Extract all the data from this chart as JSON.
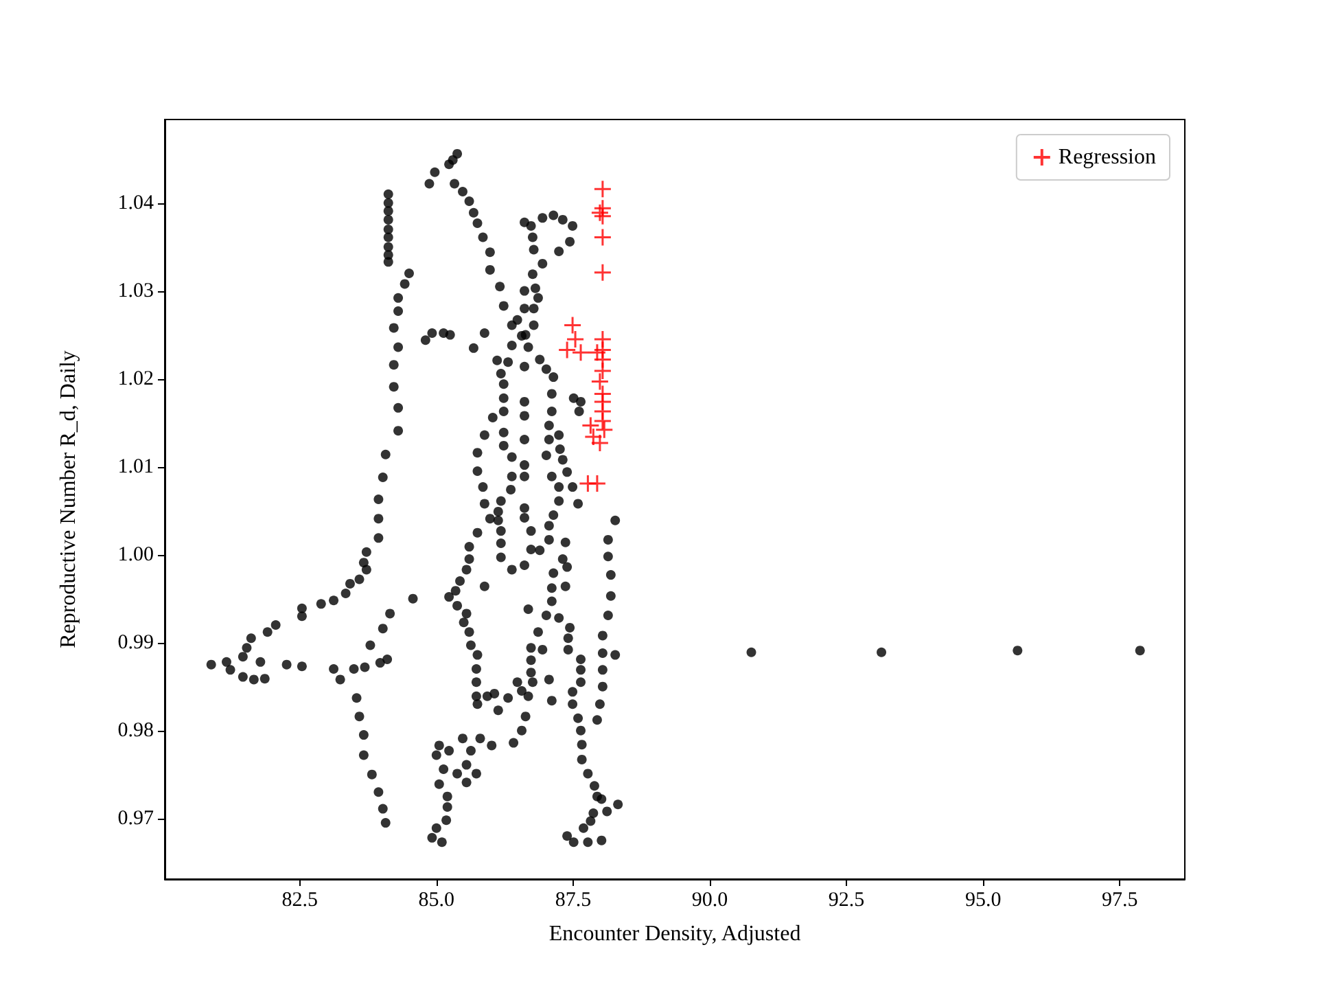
{
  "chart_data": {
    "type": "scatter",
    "xlabel": "Encounter Density, Adjusted",
    "ylabel": "Reproductive Number R_d, Daily",
    "xlim": [
      80.03,
      98.69
    ],
    "ylim": [
      0.9631,
      1.0495
    ],
    "xticks": [
      {
        "value": 82.5,
        "label": "82.5"
      },
      {
        "value": 85,
        "label": "85.0"
      },
      {
        "value": 87.5,
        "label": "87.5"
      },
      {
        "value": 90,
        "label": "90.0"
      },
      {
        "value": 92.5,
        "label": "92.5"
      },
      {
        "value": 95,
        "label": "95.0"
      },
      {
        "value": 97.5,
        "label": "97.5"
      }
    ],
    "yticks": [
      0.97,
      0.98,
      0.99,
      {
        "value": 1.0,
        "label": "1.00"
      },
      1.01,
      1.02,
      1.03,
      1.04
    ],
    "grid": false,
    "legend": "top right",
    "series": [
      {
        "color": "#000000",
        "marker": "circle",
        "x": [
          84.12,
          84.12,
          84.12,
          84.12,
          84.12,
          84.12,
          84.12,
          84.12,
          84.12,
          84.5,
          84.42,
          84.3,
          84.3,
          84.22,
          84.3,
          84.22,
          84.22,
          84.3,
          84.3,
          84.07,
          84.02,
          83.94,
          83.94,
          83.94,
          83.72,
          83.67,
          83.72,
          83.59,
          83.42,
          83.34,
          83.12,
          82.89,
          82.54,
          82.54,
          82.06,
          81.91,
          81.61,
          81.53,
          81.46,
          81.16,
          80.88,
          81.23,
          81.46,
          81.66,
          81.86,
          81.78,
          82.26,
          82.54,
          83.12,
          83.24,
          83.49,
          83.69,
          83.97,
          84.1,
          83.79,
          84.02,
          84.15,
          84.57,
          83.54,
          83.59,
          83.67,
          83.67,
          83.82,
          83.94,
          84.02,
          84.07,
          85.38,
          85.3,
          85.23,
          84.97,
          84.87,
          85.33,
          85.48,
          85.6,
          85.68,
          85.75,
          85.85,
          85.98,
          85.98,
          86.16,
          86.23,
          86.38,
          86.56,
          86.38,
          86.11,
          86.31,
          86.18,
          86.23,
          86.23,
          86.23,
          86.03,
          86.23,
          85.88,
          86.23,
          86.38,
          85.75,
          85.75,
          85.85,
          86.38,
          84.8,
          84.92,
          85.13,
          85.25,
          85.68,
          85.88,
          86.61,
          86.73,
          86.76,
          86.78,
          86.94,
          87.14,
          87.31,
          87.49,
          87.44,
          87.24,
          86.94,
          86.76,
          86.81,
          86.61,
          86.86,
          86.61,
          86.78,
          86.78,
          86.48,
          86.63,
          86.68,
          86.89,
          86.61,
          87.01,
          87.14,
          87.11,
          87.11,
          87.06,
          87.06,
          87.01,
          87.11,
          87.24,
          87.26,
          87.31,
          86.61,
          86.61,
          86.61,
          86.61,
          86.61,
          87.51,
          87.64,
          87.61,
          87.39,
          87.49,
          85.88,
          85.75,
          85.6,
          85.6,
          85.55,
          85.43,
          85.35,
          85.23,
          85.38,
          85.55,
          85.5,
          85.6,
          85.63,
          85.75,
          85.73,
          85.73,
          85.73,
          85.75,
          85.93,
          86.06,
          86.13,
          86.31,
          86.48,
          86.56,
          86.68,
          86.76,
          87.06,
          87.11,
          86.63,
          86.56,
          86.41,
          85.88,
          85.05,
          85.0,
          85.23,
          85.48,
          85.8,
          86.01,
          85.63,
          85.13,
          85.55,
          85.38,
          85.73,
          85.55,
          85.05,
          85.2,
          85.2,
          85.18,
          85.0,
          84.92,
          85.1,
          86.36,
          86.18,
          86.13,
          85.98,
          86.13,
          86.18,
          86.18,
          86.18,
          86.38,
          86.61,
          86.61,
          86.61,
          86.73,
          86.73,
          86.89,
          87.06,
          87.06,
          87.14,
          87.24,
          87.24,
          87.59,
          87.36,
          87.31,
          87.39,
          87.14,
          87.11,
          87.36,
          87.11,
          87.24,
          86.68,
          87.01,
          86.86,
          86.73,
          86.94,
          86.73,
          86.73,
          87.44,
          87.41,
          87.41,
          87.64,
          87.64,
          87.64,
          87.49,
          87.49,
          87.59,
          87.64,
          87.66,
          87.66,
          87.77,
          87.89,
          87.94,
          88.02,
          88.32,
          88.12,
          87.87,
          87.82,
          87.69,
          88.02,
          87.39,
          87.51,
          87.77,
          88.27,
          88.14,
          88.14,
          88.19,
          88.19,
          88.14,
          88.04,
          88.04,
          88.27,
          88.04,
          88.04,
          87.99,
          87.94,
          90.76,
          93.14,
          95.63,
          97.87
        ],
        "values": [
          1.041,
          1.04,
          1.0391,
          1.0381,
          1.037,
          1.0361,
          1.035,
          1.0341,
          1.0333,
          1.032,
          1.0308,
          1.0292,
          1.0277,
          1.0258,
          1.0236,
          1.0216,
          1.0191,
          1.0167,
          1.0141,
          1.0114,
          1.0088,
          1.0063,
          1.0041,
          1.0019,
          1.0003,
          0.9991,
          0.9983,
          0.9972,
          0.9967,
          0.9956,
          0.9948,
          0.9944,
          0.9939,
          0.993,
          0.992,
          0.9912,
          0.9905,
          0.9894,
          0.9884,
          0.9878,
          0.9875,
          0.9869,
          0.9861,
          0.9858,
          0.9859,
          0.9878,
          0.9875,
          0.9873,
          0.987,
          0.9858,
          0.987,
          0.9872,
          0.9877,
          0.9881,
          0.9897,
          0.9916,
          0.9933,
          0.995,
          0.9837,
          0.9816,
          0.9795,
          0.9772,
          0.975,
          0.973,
          0.9711,
          0.9695,
          1.0456,
          1.0449,
          1.0444,
          1.0435,
          1.0422,
          1.0422,
          1.0413,
          1.0402,
          1.0389,
          1.0377,
          1.0361,
          1.0344,
          1.0324,
          1.0305,
          1.0283,
          1.0261,
          1.0249,
          1.0238,
          1.0221,
          1.0219,
          1.0206,
          1.0194,
          1.0178,
          1.0163,
          1.0156,
          1.0139,
          1.0136,
          1.0124,
          1.0111,
          1.0116,
          1.0095,
          1.0077,
          1.0089,
          1.0244,
          1.0252,
          1.0252,
          1.025,
          1.0235,
          1.0252,
          1.0378,
          1.0374,
          1.0361,
          1.0347,
          1.0383,
          1.0386,
          1.0381,
          1.0374,
          1.0356,
          1.0345,
          1.0331,
          1.0319,
          1.0303,
          1.03,
          1.0292,
          1.028,
          1.028,
          1.0261,
          1.0267,
          1.025,
          1.0236,
          1.0222,
          1.0214,
          1.0211,
          1.0202,
          1.0183,
          1.0163,
          1.0147,
          1.0131,
          1.0113,
          1.0089,
          1.0136,
          1.012,
          1.0108,
          1.0174,
          1.0158,
          1.0131,
          1.0102,
          1.0089,
          1.0178,
          1.0174,
          1.0163,
          1.0094,
          1.0077,
          1.0058,
          1.0025,
          1.0009,
          0.9995,
          0.9983,
          0.997,
          0.9959,
          0.9952,
          0.9942,
          0.9933,
          0.9923,
          0.9912,
          0.9897,
          0.9886,
          0.987,
          0.9855,
          0.9839,
          0.983,
          0.9839,
          0.9842,
          0.9823,
          0.9837,
          0.9855,
          0.9845,
          0.9839,
          0.9855,
          0.9858,
          0.9834,
          0.9816,
          0.98,
          0.9786,
          0.9964,
          0.9783,
          0.9772,
          0.9777,
          0.9791,
          0.9791,
          0.9783,
          0.9777,
          0.9756,
          0.9761,
          0.9751,
          0.9751,
          0.9741,
          0.9739,
          0.9725,
          0.9713,
          0.9698,
          0.9689,
          0.9678,
          0.9673,
          1.0074,
          1.0061,
          1.0049,
          1.0041,
          1.0039,
          1.0027,
          1.0013,
          0.9997,
          0.9983,
          0.9988,
          1.0053,
          1.0042,
          1.0027,
          1.0006,
          1.0005,
          1.0017,
          1.0033,
          1.0045,
          1.0061,
          1.0077,
          1.0058,
          1.0014,
          0.9995,
          0.9986,
          0.9979,
          0.9962,
          0.9964,
          0.9947,
          0.9928,
          0.9938,
          0.9931,
          0.9912,
          0.9894,
          0.9892,
          0.988,
          0.9866,
          0.9917,
          0.9905,
          0.9892,
          0.9881,
          0.9869,
          0.9855,
          0.9844,
          0.983,
          0.9814,
          0.98,
          0.9784,
          0.9767,
          0.9751,
          0.9737,
          0.9725,
          0.9722,
          0.9716,
          0.9708,
          0.9706,
          0.9697,
          0.9689,
          0.9675,
          0.968,
          0.9673,
          0.9673,
          1.0039,
          1.0017,
          0.9998,
          0.9977,
          0.9953,
          0.9931,
          0.9908,
          0.9888,
          0.9886,
          0.9869,
          0.985,
          0.983,
          0.9812,
          0.9889,
          0.9889,
          0.9891,
          0.9891
        ]
      },
      {
        "name": "Regression",
        "color": "#ff0000",
        "marker": "cross",
        "x": [
          88.04,
          88.04,
          87.99,
          88.04,
          88.04,
          88.04,
          87.49,
          87.54,
          87.39,
          87.64,
          88.04,
          88.04,
          88.04,
          87.94,
          88.04,
          87.99,
          88.04,
          88.04,
          88.04,
          88.04,
          87.82,
          88.07,
          87.87,
          87.99,
          87.77,
          87.94
        ],
        "values": [
          1.0416,
          1.0394,
          1.0389,
          1.0385,
          1.0361,
          1.0321,
          1.0261,
          1.0245,
          1.0233,
          1.023,
          1.0245,
          1.0233,
          1.0222,
          1.023,
          1.0209,
          1.0197,
          1.0183,
          1.0174,
          1.0163,
          1.0152,
          1.0147,
          1.0142,
          1.0134,
          1.0127,
          1.0081,
          1.0081
        ]
      }
    ]
  }
}
